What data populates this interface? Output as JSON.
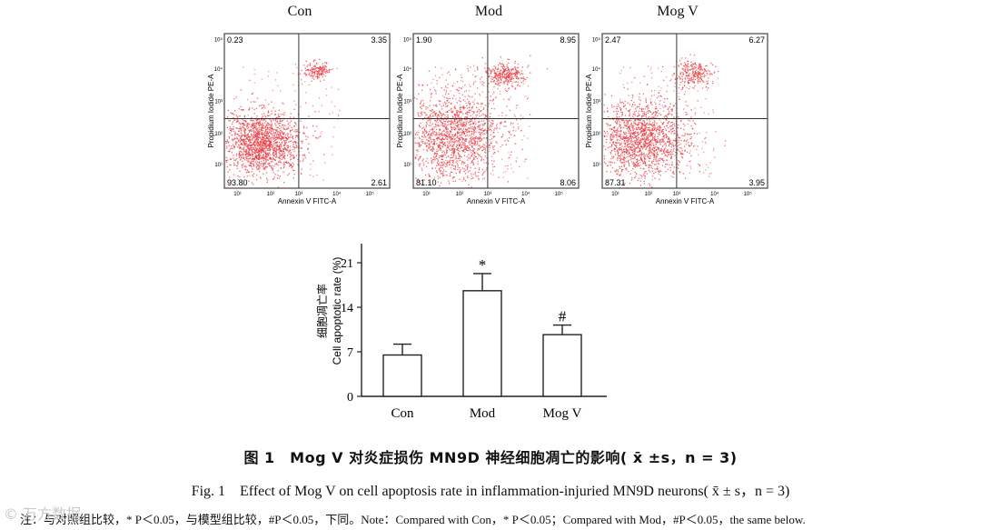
{
  "chart_data": [
    {
      "type": "scatter",
      "title": "Con",
      "xlabel": "Annexin V FITC-A",
      "ylabel": "Propidium Iodide PE-A",
      "axis_scale": "log",
      "ticks": [
        "10⁰",
        "10¹",
        "10²",
        "10³",
        "10⁴",
        "10⁵"
      ],
      "quadrants": {
        "upper_left": "0.23",
        "upper_right": "3.35",
        "lower_left": "93.80",
        "lower_right": "2.61"
      }
    },
    {
      "type": "scatter",
      "title": "Mod",
      "xlabel": "Annexin V FITC-A",
      "ylabel": "Propidium Iodide PE-A",
      "axis_scale": "log",
      "ticks": [
        "10⁰",
        "10¹",
        "10²",
        "10³",
        "10⁴",
        "10⁵"
      ],
      "quadrants": {
        "upper_left": "1.90",
        "upper_right": "8.95",
        "lower_left": "81.10",
        "lower_right": "8.06"
      }
    },
    {
      "type": "scatter",
      "title": "Mog V",
      "xlabel": "Annexin V FITC-A",
      "ylabel": "Propidium Iodide PE-A",
      "axis_scale": "log",
      "ticks": [
        "10⁰",
        "10¹",
        "10²",
        "10³",
        "10⁴",
        "10⁵"
      ],
      "quadrants": {
        "upper_left": "2.47",
        "upper_right": "6.27",
        "lower_left": "87.31",
        "lower_right": "3.95"
      }
    },
    {
      "type": "bar",
      "categories": [
        "Con",
        "Mod",
        "Mog V"
      ],
      "values": [
        6.5,
        16.6,
        9.7
      ],
      "errors": [
        1.7,
        2.7,
        1.5
      ],
      "annotations": [
        "",
        "*",
        "#"
      ],
      "ylabel_cn": "细胞凋亡率",
      "ylabel": "Cell apoptotic rate (%)",
      "ylim": [
        0,
        24
      ],
      "yticks": [
        0,
        7,
        14,
        21
      ]
    }
  ],
  "captions": {
    "cn": "图 1　Mog V 对炎症损伤 MN9D 神经细胞凋亡的影响( x̄ ±s，n = 3)",
    "en": "Fig. 1　Effect of Mog V on cell apoptosis rate in inflammation-injuried MN9D neurons( x̄ ± s，n = 3)",
    "note": "注：与对照组比较，* P＜0.05，与模型组比较，#P＜0.05，下同。Note：Compared with Con，* P＜0.05；Compared with Mod，#P＜0.05，the same below."
  },
  "watermark": "© 万方数据",
  "colors": {
    "dots": "#e8383f",
    "axis": "#222222",
    "quadrant_line": "#333333"
  }
}
